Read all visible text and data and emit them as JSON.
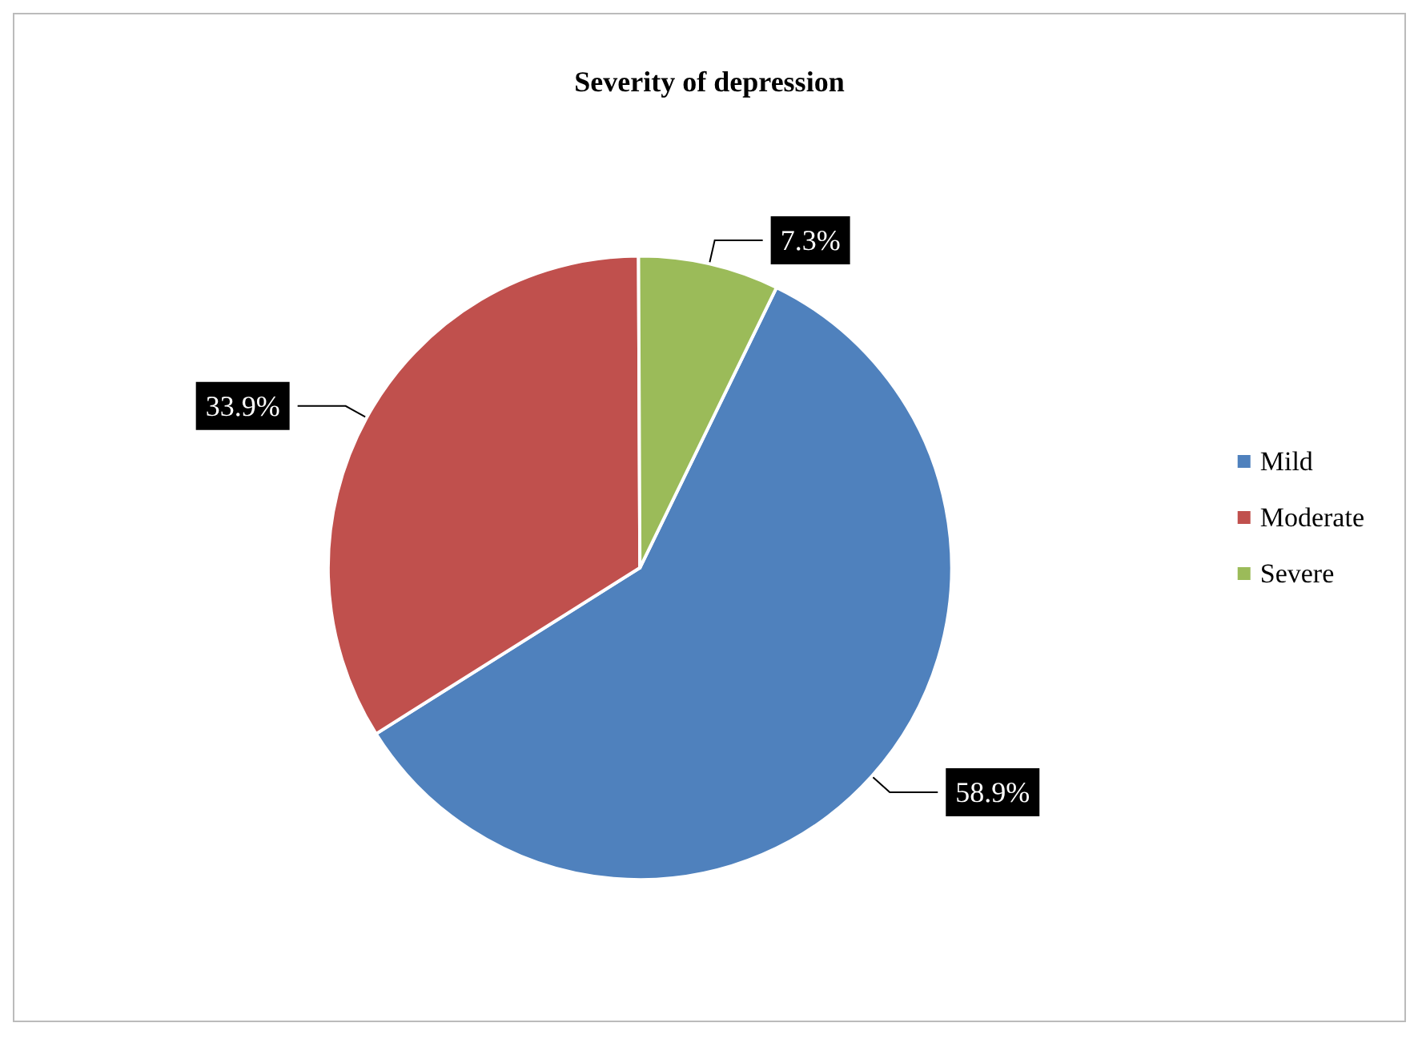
{
  "chart_data": {
    "type": "pie",
    "title": "Severity of depression",
    "categories": [
      "Mild",
      "Moderate",
      "Severe"
    ],
    "values": [
      58.9,
      33.9,
      7.3
    ],
    "value_labels": [
      "58.9%",
      "33.9%",
      "7.3%"
    ],
    "colors": [
      "#4f81bd",
      "#c0504d",
      "#9bbb59"
    ],
    "legend": "right"
  }
}
